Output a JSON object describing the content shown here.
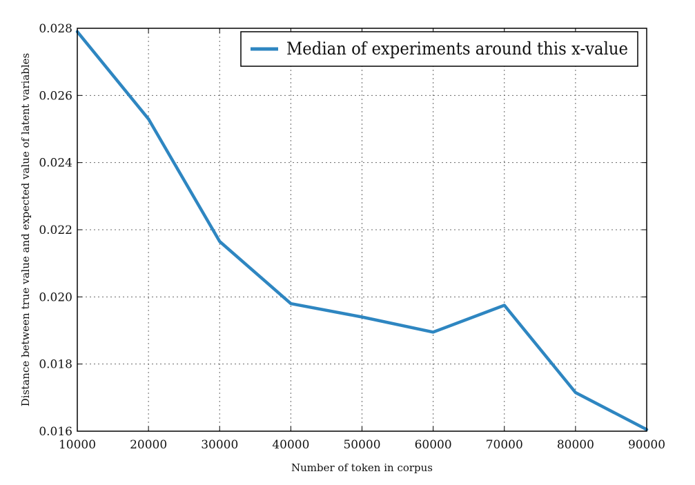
{
  "chart_data": {
    "type": "line",
    "title": "",
    "xlabel": "Number of token in corpus",
    "ylabel": "Distance between true value and expected value of latent variables",
    "xlim": [
      10000,
      90000
    ],
    "ylim": [
      0.016,
      0.028
    ],
    "x_ticks": [
      "10000",
      "20000",
      "30000",
      "40000",
      "50000",
      "60000",
      "70000",
      "80000",
      "90000"
    ],
    "y_ticks": [
      "0.016",
      "0.018",
      "0.020",
      "0.022",
      "0.024",
      "0.026",
      "0.028"
    ],
    "grid": true,
    "legend_position": "top-right",
    "series": [
      {
        "name": "Median of experiments around this x-value",
        "color": "#2e86c1",
        "x": [
          10000,
          20000,
          30000,
          40000,
          50000,
          60000,
          70000,
          80000,
          90000
        ],
        "y": [
          0.0279,
          0.0253,
          0.02165,
          0.0198,
          0.0194,
          0.01895,
          0.01975,
          0.01715,
          0.01605
        ]
      }
    ]
  }
}
